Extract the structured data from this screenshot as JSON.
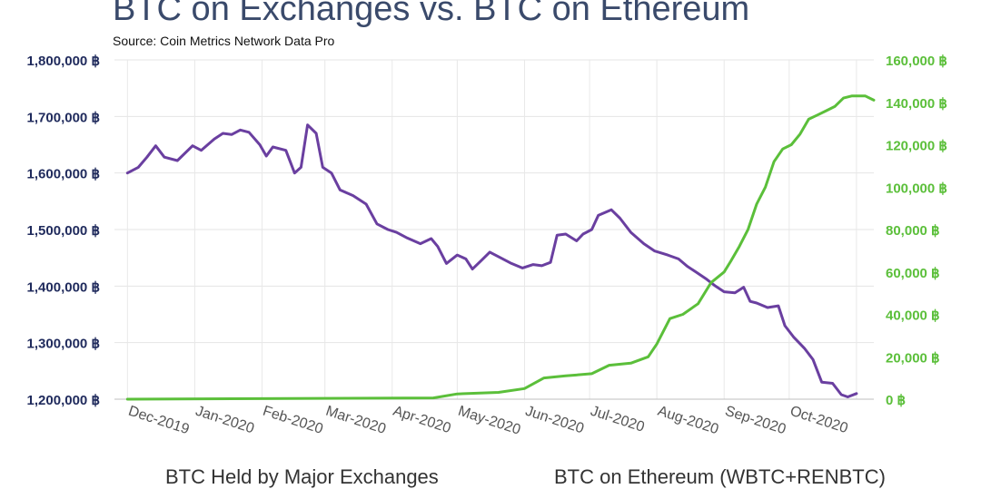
{
  "title": "BTC on Exchanges vs. BTC on Ethereum",
  "source": "Source: Coin Metrics Network Data Pro",
  "legend": [
    {
      "label": "BTC Held by Major Exchanges",
      "color": "#6a3fa0"
    },
    {
      "label": "BTC on Ethereum (WBTC+RENBTC)",
      "color": "#5bbf3a"
    }
  ],
  "chart_data": {
    "type": "line",
    "title": "BTC on Exchanges vs. BTC on Ethereum",
    "x_tick_labels": [
      "Dec-2019",
      "Jan-2020",
      "Feb-2020",
      "Mar-2020",
      "Apr-2020",
      "May-2020",
      "Jun-2020",
      "Jul-2020",
      "Aug-2020",
      "Sep-2020",
      "Oct-2020"
    ],
    "y_left": {
      "ylim": [
        1200000,
        1800000
      ],
      "tick_labels": [
        "1,800,000 ฿",
        "1,700,000 ฿",
        "1,600,000 ฿",
        "1,500,000 ฿",
        "1,400,000 ฿",
        "1,300,000 ฿",
        "1,200,000 ฿"
      ],
      "color": "#1f2a5c"
    },
    "y_right": {
      "ylim": [
        0,
        160000
      ],
      "tick_labels": [
        "160,000 ฿",
        "140,000 ฿",
        "120,000 ฿",
        "100,000 ฿",
        "80,000 ฿",
        "60,000 ฿",
        "40,000 ฿",
        "20,000 ฿",
        "0 ฿"
      ],
      "color": "#5bbf3a"
    },
    "grid": true,
    "series": [
      {
        "name": "BTC Held by Major Exchanges",
        "axis": "left",
        "color": "#6a3fa0",
        "points": [
          [
            "2019-12-01",
            1600000
          ],
          [
            "2019-12-06",
            1610000
          ],
          [
            "2019-12-10",
            1628000
          ],
          [
            "2019-12-14",
            1648000
          ],
          [
            "2019-12-18",
            1628000
          ],
          [
            "2019-12-24",
            1622000
          ],
          [
            "2019-12-31",
            1648000
          ],
          [
            "2020-01-04",
            1640000
          ],
          [
            "2020-01-10",
            1660000
          ],
          [
            "2020-01-14",
            1670000
          ],
          [
            "2020-01-18",
            1668000
          ],
          [
            "2020-01-22",
            1676000
          ],
          [
            "2020-01-26",
            1672000
          ],
          [
            "2020-01-31",
            1650000
          ],
          [
            "2020-02-03",
            1630000
          ],
          [
            "2020-02-06",
            1646000
          ],
          [
            "2020-02-12",
            1640000
          ],
          [
            "2020-02-16",
            1600000
          ],
          [
            "2020-02-19",
            1610000
          ],
          [
            "2020-02-22",
            1685000
          ],
          [
            "2020-02-26",
            1670000
          ],
          [
            "2020-02-29",
            1610000
          ],
          [
            "2020-03-04",
            1600000
          ],
          [
            "2020-03-08",
            1570000
          ],
          [
            "2020-03-14",
            1560000
          ],
          [
            "2020-03-20",
            1545000
          ],
          [
            "2020-03-25",
            1510000
          ],
          [
            "2020-03-30",
            1500000
          ],
          [
            "2020-04-03",
            1495000
          ],
          [
            "2020-04-08",
            1485000
          ],
          [
            "2020-04-14",
            1475000
          ],
          [
            "2020-04-19",
            1484000
          ],
          [
            "2020-04-22",
            1470000
          ],
          [
            "2020-04-26",
            1440000
          ],
          [
            "2020-05-01",
            1455000
          ],
          [
            "2020-05-05",
            1448000
          ],
          [
            "2020-05-08",
            1430000
          ],
          [
            "2020-05-12",
            1445000
          ],
          [
            "2020-05-16",
            1460000
          ],
          [
            "2020-05-21",
            1450000
          ],
          [
            "2020-05-26",
            1440000
          ],
          [
            "2020-05-31",
            1432000
          ],
          [
            "2020-06-05",
            1438000
          ],
          [
            "2020-06-09",
            1436000
          ],
          [
            "2020-06-13",
            1442000
          ],
          [
            "2020-06-16",
            1490000
          ],
          [
            "2020-06-20",
            1492000
          ],
          [
            "2020-06-25",
            1480000
          ],
          [
            "2020-06-28",
            1492000
          ],
          [
            "2020-07-02",
            1500000
          ],
          [
            "2020-07-05",
            1525000
          ],
          [
            "2020-07-11",
            1535000
          ],
          [
            "2020-07-15",
            1520000
          ],
          [
            "2020-07-20",
            1495000
          ],
          [
            "2020-07-26",
            1475000
          ],
          [
            "2020-07-31",
            1462000
          ],
          [
            "2020-08-06",
            1455000
          ],
          [
            "2020-08-11",
            1448000
          ],
          [
            "2020-08-15",
            1435000
          ],
          [
            "2020-08-19",
            1425000
          ],
          [
            "2020-08-24",
            1412000
          ],
          [
            "2020-08-28",
            1400000
          ],
          [
            "2020-09-01",
            1390000
          ],
          [
            "2020-09-06",
            1388000
          ],
          [
            "2020-09-10",
            1398000
          ],
          [
            "2020-09-13",
            1373000
          ],
          [
            "2020-09-16",
            1370000
          ],
          [
            "2020-09-21",
            1362000
          ],
          [
            "2020-09-26",
            1365000
          ],
          [
            "2020-09-29",
            1330000
          ],
          [
            "2020-10-03",
            1310000
          ],
          [
            "2020-10-08",
            1290000
          ],
          [
            "2020-10-12",
            1270000
          ],
          [
            "2020-10-16",
            1230000
          ],
          [
            "2020-10-21",
            1228000
          ],
          [
            "2020-10-25",
            1208000
          ],
          [
            "2020-10-28",
            1204000
          ],
          [
            "2020-11-01",
            1210000
          ]
        ]
      },
      {
        "name": "BTC on Ethereum (WBTC+RENBTC)",
        "axis": "right",
        "color": "#5bbf3a",
        "points": [
          [
            "2019-12-01",
            0
          ],
          [
            "2020-04-20",
            600
          ],
          [
            "2020-05-01",
            2500
          ],
          [
            "2020-05-20",
            3200
          ],
          [
            "2020-06-01",
            5000
          ],
          [
            "2020-06-10",
            10000
          ],
          [
            "2020-06-20",
            11000
          ],
          [
            "2020-07-02",
            12000
          ],
          [
            "2020-07-10",
            16000
          ],
          [
            "2020-07-20",
            17000
          ],
          [
            "2020-07-28",
            20000
          ],
          [
            "2020-08-01",
            26000
          ],
          [
            "2020-08-07",
            38000
          ],
          [
            "2020-08-13",
            40000
          ],
          [
            "2020-08-20",
            45000
          ],
          [
            "2020-08-26",
            55000
          ],
          [
            "2020-09-01",
            60000
          ],
          [
            "2020-09-04",
            65000
          ],
          [
            "2020-09-08",
            72000
          ],
          [
            "2020-09-12",
            80000
          ],
          [
            "2020-09-16",
            92000
          ],
          [
            "2020-09-20",
            100000
          ],
          [
            "2020-09-24",
            112000
          ],
          [
            "2020-09-28",
            118000
          ],
          [
            "2020-10-02",
            120000
          ],
          [
            "2020-10-06",
            125000
          ],
          [
            "2020-10-10",
            132000
          ],
          [
            "2020-10-14",
            134000
          ],
          [
            "2020-10-18",
            136000
          ],
          [
            "2020-10-22",
            138000
          ],
          [
            "2020-10-26",
            142000
          ],
          [
            "2020-10-30",
            143000
          ],
          [
            "2020-11-05",
            143000
          ],
          [
            "2020-11-09",
            141000
          ]
        ]
      }
    ]
  }
}
